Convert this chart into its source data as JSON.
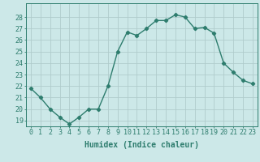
{
  "x": [
    0,
    1,
    2,
    3,
    4,
    5,
    6,
    7,
    8,
    9,
    10,
    11,
    12,
    13,
    14,
    15,
    16,
    17,
    18,
    19,
    20,
    21,
    22,
    23
  ],
  "y": [
    21.8,
    21.0,
    20.0,
    19.3,
    18.7,
    19.3,
    20.0,
    20.0,
    22.0,
    25.0,
    26.7,
    26.4,
    27.0,
    27.7,
    27.7,
    28.2,
    28.0,
    27.0,
    27.1,
    26.6,
    24.0,
    23.2,
    22.5,
    22.2
  ],
  "line_color": "#2e7d6e",
  "marker": "D",
  "marker_size": 2.2,
  "line_width": 1.0,
  "bg_color": "#cce8e8",
  "grid_color": "#b0cccc",
  "xlabel": "Humidex (Indice chaleur)",
  "xlabel_fontsize": 7,
  "tick_fontsize": 6,
  "ylim": [
    18.5,
    29.2
  ],
  "yticks": [
    19,
    20,
    21,
    22,
    23,
    24,
    25,
    26,
    27,
    28
  ],
  "xticks": [
    0,
    1,
    2,
    3,
    4,
    5,
    6,
    7,
    8,
    9,
    10,
    11,
    12,
    13,
    14,
    15,
    16,
    17,
    18,
    19,
    20,
    21,
    22,
    23
  ]
}
